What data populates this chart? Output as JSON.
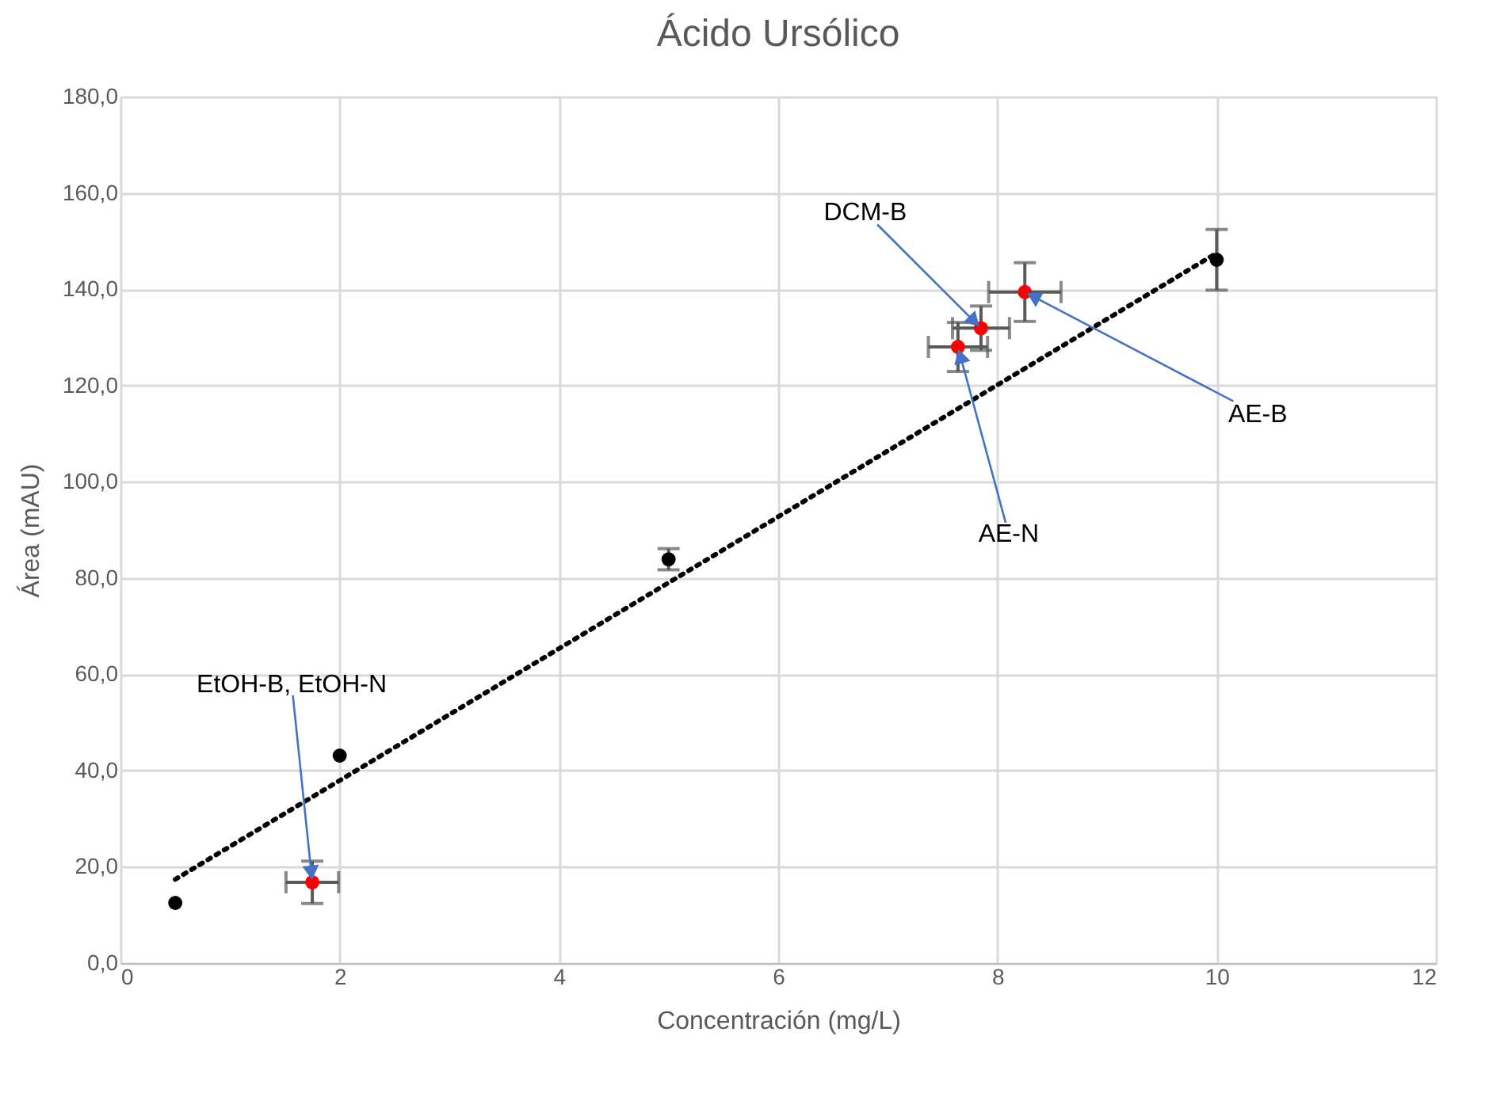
{
  "chart_data": {
    "type": "scatter",
    "title": "Ácido Ursólico",
    "xlabel": "Concentración (mg/L)",
    "ylabel": "Área (mAU)",
    "xlim": [
      0,
      12
    ],
    "xticks": [
      0,
      2,
      4,
      6,
      8,
      10,
      12
    ],
    "ylim": [
      0,
      180
    ],
    "yticks": [
      {
        "value": 0,
        "label": "0,0"
      },
      {
        "value": 20,
        "label": "20,0"
      },
      {
        "value": 40,
        "label": "40,0"
      },
      {
        "value": 60,
        "label": "60,0"
      },
      {
        "value": 80,
        "label": "80,0"
      },
      {
        "value": 100,
        "label": "100,0"
      },
      {
        "value": 120,
        "label": "120,0"
      },
      {
        "value": 140,
        "label": "140,0"
      },
      {
        "value": 160,
        "label": "160,0"
      },
      {
        "value": 180,
        "label": "180,0"
      }
    ],
    "grid": true,
    "marker": "circle",
    "series": [
      {
        "type": "line",
        "color": "#000000",
        "line_style": "dotted",
        "marker": "none",
        "x": [
          0.5,
          10
        ],
        "values": [
          17.4,
          147.5
        ]
      },
      {
        "color": "#000000",
        "x": [
          0.5,
          2,
          5,
          10
        ],
        "values": [
          12.5,
          43.1,
          83.9,
          146.1
        ],
        "errors": [
          null,
          null,
          2.2,
          6.3
        ]
      },
      {
        "color": "#ff0000",
        "x": [
          1.75,
          7.64,
          7.85,
          8.25
        ],
        "values": [
          16.8,
          128.0,
          131.9,
          139.4
        ],
        "errors": [
          4.4,
          5.1,
          4.6,
          6.1
        ],
        "xerrors": [
          0.24,
          0.27,
          0.26,
          0.33
        ]
      }
    ],
    "annotations": [
      {
        "text": "EtOH-B, EtOH-N",
        "x": 1.75,
        "y": 16.8
      },
      {
        "text": "DCM-B",
        "x": 7.85,
        "y": 131.9
      },
      {
        "text": "AE-N",
        "x": 7.64,
        "y": 128.0
      },
      {
        "text": "AE-B",
        "x": 8.25,
        "y": 139.4
      }
    ]
  }
}
